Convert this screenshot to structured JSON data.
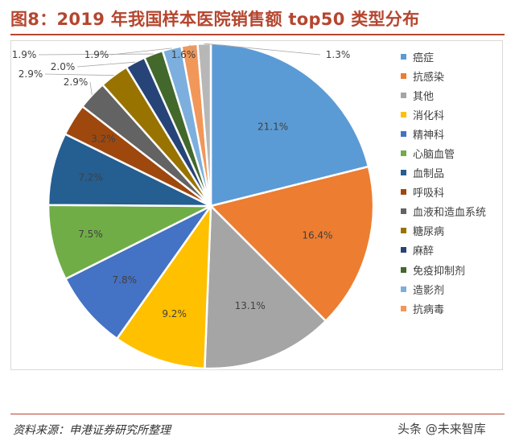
{
  "header": {
    "title": "图8：2019 年我国样本医院销售额 top50 类型分布"
  },
  "footer": {
    "source": "资料来源：申港证券研究所整理",
    "watermark": "头条 @未来智库"
  },
  "chart_data": {
    "type": "pie",
    "title": "图8：2019 年我国样本医院销售额 top50 类型分布",
    "start_angle": "12 o'clock",
    "direction": "clockwise",
    "legend_position": "right",
    "slices": [
      {
        "name": "癌症",
        "value": 21.1,
        "label": "21.1%",
        "color": "#5b9bd5"
      },
      {
        "name": "抗感染",
        "value": 16.4,
        "label": "16.4%",
        "color": "#ed7d31"
      },
      {
        "name": "其他",
        "value": 13.1,
        "label": "13.1%",
        "color": "#a5a5a5"
      },
      {
        "name": "消化科",
        "value": 9.2,
        "label": "9.2%",
        "color": "#ffc000"
      },
      {
        "name": "精神科",
        "value": 7.8,
        "label": "7.8%",
        "color": "#4472c4"
      },
      {
        "name": "心脑血管",
        "value": 7.5,
        "label": "7.5%",
        "color": "#70ad47"
      },
      {
        "name": "血制品",
        "value": 7.2,
        "label": "7.2%",
        "color": "#255e91"
      },
      {
        "name": "呼吸科",
        "value": 3.2,
        "label": "3.2%",
        "color": "#9e480e"
      },
      {
        "name": "血液和造血系统",
        "value": 2.9,
        "label": "2.9%",
        "color": "#636363"
      },
      {
        "name": "糖尿病",
        "value": 2.9,
        "label": "2.9%",
        "color": "#997300"
      },
      {
        "name": "麻醉",
        "value": 2.0,
        "label": "2.0%",
        "color": "#264478"
      },
      {
        "name": "免疫抑制剂",
        "value": 1.9,
        "label": "1.9%",
        "color": "#43682b"
      },
      {
        "name": "造影剂",
        "value": 1.9,
        "label": "1.9%",
        "color": "#7cafdd"
      },
      {
        "name": "抗病毒",
        "value": 1.6,
        "label": "1.6%",
        "color": "#f1975a"
      },
      {
        "name": "",
        "value": 1.3,
        "label": "1.3%",
        "color": "#b7b7b7"
      }
    ]
  }
}
